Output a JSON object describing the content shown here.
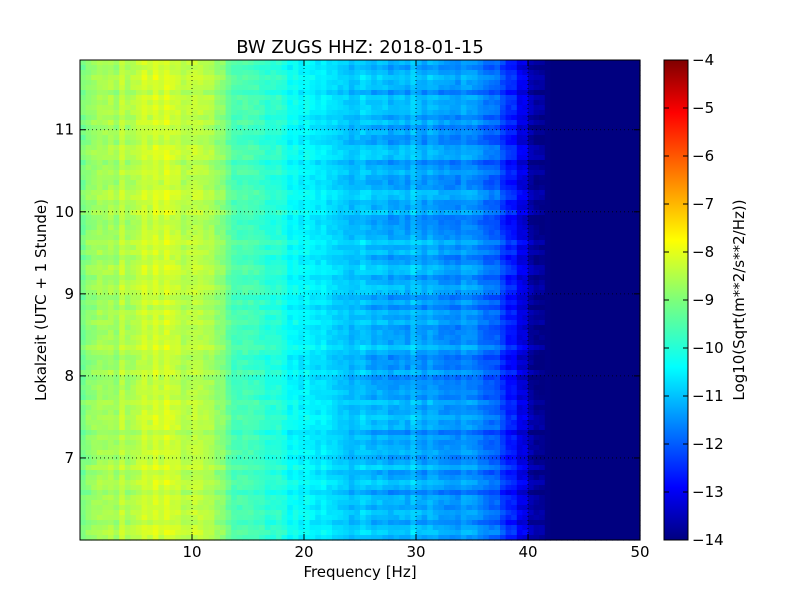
{
  "chart_data": {
    "type": "heatmap",
    "title": "BW ZUGS HHZ: 2018-01-15",
    "xlabel": "Frequency [Hz]",
    "ylabel": "Lokalzeit (UTC + 1 Stunde)",
    "xlim": [
      0,
      50
    ],
    "ylim": [
      11.85,
      6.0
    ],
    "y_inverted": true,
    "x_ticks": [
      10,
      20,
      30,
      40,
      50
    ],
    "x_tick_labels": [
      "10",
      "20",
      "30",
      "40",
      "50"
    ],
    "y_ticks": [
      7,
      8,
      9,
      10,
      11
    ],
    "y_tick_labels": [
      "7",
      "8",
      "9",
      "10",
      "11"
    ],
    "grid": true,
    "colormap": "jet",
    "colorbar": {
      "label": "Log10(Sqrt(m**2/s**2/Hz))",
      "range": [
        -14,
        -4
      ],
      "ticks": [
        -4,
        -5,
        -6,
        -7,
        -8,
        -9,
        -10,
        -11,
        -12,
        -13,
        -14
      ],
      "tick_labels": [
        "−4",
        "−5",
        "−6",
        "−7",
        "−8",
        "−9",
        "−10",
        "−11",
        "−12",
        "−13",
        "−14"
      ]
    },
    "spectrum_profile": {
      "frequency_hz": [
        0,
        3,
        6,
        8,
        10,
        12,
        14,
        17,
        20,
        23,
        25,
        27,
        30,
        33,
        36,
        38,
        39,
        40,
        41,
        42,
        45,
        50
      ],
      "log10_amplitude": [
        -9.0,
        -8.6,
        -8.3,
        -8.2,
        -8.4,
        -8.8,
        -9.4,
        -9.9,
        -10.3,
        -10.6,
        -10.9,
        -11.1,
        -11.0,
        -11.2,
        -11.5,
        -12.2,
        -12.8,
        -13.4,
        -13.8,
        -14.0,
        -14.0,
        -14.0
      ]
    }
  }
}
